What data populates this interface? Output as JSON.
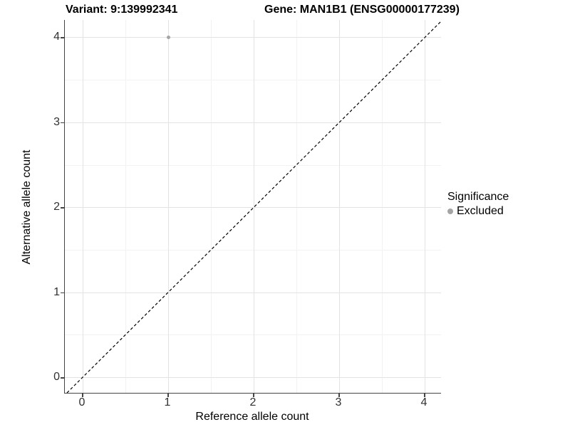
{
  "titles": {
    "variant": "Variant: 9:139992341",
    "gene": "Gene: MAN1B1 (ENSG00000177239)"
  },
  "chart_data": {
    "type": "scatter",
    "title_left": "Variant: 9:139992341",
    "title_right": "Gene: MAN1B1 (ENSG00000177239)",
    "xlabel": "Reference allele count",
    "ylabel": "Alternative allele count",
    "xlim": [
      -0.21,
      4.21
    ],
    "ylim": [
      -0.21,
      4.21
    ],
    "x_ticks": [
      0,
      1,
      2,
      3,
      4
    ],
    "y_ticks": [
      0,
      1,
      2,
      3,
      4
    ],
    "x_minor_ticks": [
      0.5,
      1.5,
      2.5,
      3.5
    ],
    "y_minor_ticks": [
      0.5,
      1.5,
      2.5,
      3.5
    ],
    "grid": true,
    "reference_line": {
      "kind": "identity",
      "equation": "y = x",
      "style": "dashed",
      "color": "#000000"
    },
    "series": [
      {
        "name": "Excluded",
        "color": "#a5a5a5",
        "points": [
          {
            "x": 1,
            "y": 4
          }
        ]
      }
    ],
    "legend": {
      "title": "Significance",
      "position": "right",
      "entries": [
        {
          "label": "Excluded",
          "color": "#a5a5a5"
        }
      ]
    }
  },
  "colors": {
    "background": "#ffffff",
    "grid_major": "#e3e3e3",
    "grid_minor": "#f2f2f2",
    "axis_line": "#444444",
    "tick_label": "#303030",
    "point": "#a5a5a5"
  }
}
